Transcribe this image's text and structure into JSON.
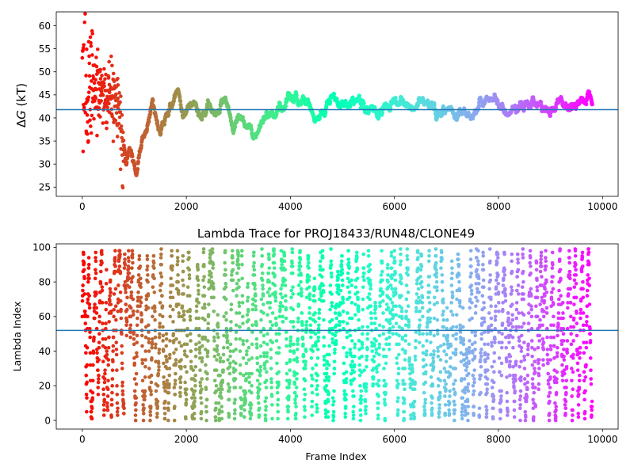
{
  "chart_data": [
    {
      "type": "scatter",
      "title": "",
      "xlabel": "",
      "ylabel": "ΔG (kT)",
      "ylabel_prefix": "Δ",
      "ylabel_var": "G",
      "ylabel_unit": " (kT)",
      "xlim": [
        -500,
        10300
      ],
      "ylim": [
        23,
        63
      ],
      "xticks": [
        0,
        2000,
        4000,
        6000,
        8000,
        10000
      ],
      "yticks": [
        25,
        30,
        35,
        40,
        45,
        50,
        55,
        60
      ],
      "hline": 41.8,
      "hline_color": "#1f77b4",
      "colormap": "rainbow (red at start → purple at end)",
      "n_frames": 9800,
      "series": [
        {
          "values_key": "trace_points",
          "points": [
            [
              0,
              50
            ],
            [
              20,
              42
            ],
            [
              40,
              55
            ],
            [
              60,
              47
            ],
            [
              80,
              45
            ],
            [
              100,
              44
            ],
            [
              150,
              46
            ],
            [
              200,
              47
            ],
            [
              300,
              44
            ],
            [
              400,
              46
            ],
            [
              500,
              44
            ],
            [
              600,
              43
            ],
            [
              700,
              42
            ],
            [
              800,
              34
            ],
            [
              850,
              30
            ],
            [
              900,
              33
            ],
            [
              950,
              31
            ],
            [
              1000,
              30
            ],
            [
              1050,
              28
            ],
            [
              1100,
              32
            ],
            [
              1150,
              35
            ],
            [
              1200,
              37
            ],
            [
              1300,
              40
            ],
            [
              1350,
              44
            ],
            [
              1400,
              40
            ],
            [
              1500,
              36
            ],
            [
              1600,
              40
            ],
            [
              1700,
              42
            ],
            [
              1800,
              46
            ],
            [
              1850,
              45
            ],
            [
              1900,
              42
            ],
            [
              2000,
              40
            ],
            [
              2100,
              44
            ],
            [
              2200,
              43
            ],
            [
              2300,
              40
            ],
            [
              2400,
              42
            ],
            [
              2500,
              43
            ],
            [
              2600,
              41
            ],
            [
              2700,
              44
            ],
            [
              2800,
              43
            ],
            [
              2900,
              38
            ],
            [
              3000,
              41
            ],
            [
              3100,
              40
            ],
            [
              3200,
              39
            ],
            [
              3300,
              37
            ],
            [
              3400,
              39
            ],
            [
              3500,
              40
            ],
            [
              3600,
              41
            ],
            [
              3700,
              40
            ],
            [
              3800,
              42
            ],
            [
              3900,
              43
            ],
            [
              4000,
              46
            ],
            [
              4100,
              45
            ],
            [
              4200,
              43
            ],
            [
              4300,
              43
            ],
            [
              4400,
              42
            ],
            [
              4500,
              40
            ],
            [
              4600,
              41
            ],
            [
              4700,
              43
            ],
            [
              4800,
              43
            ],
            [
              4900,
              43
            ],
            [
              5000,
              44
            ],
            [
              5100,
              43
            ],
            [
              5200,
              45
            ],
            [
              5300,
              44
            ],
            [
              5400,
              43
            ],
            [
              5500,
              42
            ],
            [
              5600,
              42
            ],
            [
              5700,
              41
            ],
            [
              5800,
              42
            ],
            [
              5900,
              42
            ],
            [
              6000,
              43
            ],
            [
              6100,
              44
            ],
            [
              6200,
              44
            ],
            [
              6300,
              43
            ],
            [
              6400,
              43
            ],
            [
              6500,
              43
            ],
            [
              6600,
              43
            ],
            [
              6700,
              42
            ],
            [
              6800,
              41
            ],
            [
              6900,
              41
            ],
            [
              7000,
              42
            ],
            [
              7100,
              42
            ],
            [
              7200,
              41
            ],
            [
              7300,
              42
            ],
            [
              7400,
              41
            ],
            [
              7500,
              40
            ],
            [
              7600,
              42
            ],
            [
              7700,
              43
            ],
            [
              7800,
              44
            ],
            [
              7900,
              45
            ],
            [
              8000,
              43
            ],
            [
              8100,
              42
            ],
            [
              8200,
              42
            ],
            [
              8300,
              43
            ],
            [
              8400,
              43
            ],
            [
              8500,
              43
            ],
            [
              8600,
              44
            ],
            [
              8700,
              44
            ],
            [
              8800,
              43
            ],
            [
              8900,
              41
            ],
            [
              9000,
              41
            ],
            [
              9100,
              42
            ],
            [
              9200,
              44
            ],
            [
              9300,
              42
            ],
            [
              9400,
              41
            ],
            [
              9500,
              42
            ],
            [
              9600,
              43
            ],
            [
              9700,
              44
            ],
            [
              9800,
              43
            ]
          ]
        }
      ]
    },
    {
      "type": "scatter",
      "title": "Lambda Trace for PROJ18433/RUN48/CLONE49",
      "xlabel": "Frame Index",
      "ylabel": "Lambda Index",
      "xlim": [
        -500,
        10300
      ],
      "ylim": [
        -5,
        102
      ],
      "xticks": [
        0,
        2000,
        4000,
        6000,
        8000,
        10000
      ],
      "yticks": [
        0,
        20,
        40,
        60,
        80,
        100
      ],
      "hline": 52,
      "hline_color": "#1f77b4",
      "colormap": "rainbow (red at start → purple at end)",
      "n_frames": 9800,
      "lambda_range": [
        0,
        99
      ]
    }
  ]
}
